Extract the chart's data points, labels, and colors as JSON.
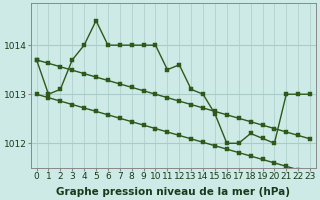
{
  "xlabel": "Graphe pression niveau de la mer (hPa)",
  "background_color": "#ceeae6",
  "grid_color": "#aaccc8",
  "line_color": "#2d5a1b",
  "marker_color": "#2d5a1b",
  "text_color": "#1a3a1a",
  "hours": [
    0,
    1,
    2,
    3,
    4,
    5,
    6,
    7,
    8,
    9,
    10,
    11,
    12,
    13,
    14,
    15,
    16,
    17,
    18,
    19,
    20,
    21,
    22,
    23
  ],
  "series_main": [
    1013.7,
    1013.0,
    1013.1,
    1013.7,
    1014.0,
    1014.5,
    1014.0,
    1014.0,
    1014.0,
    1014.0,
    1014.0,
    1013.5,
    1013.6,
    1013.1,
    1013.0,
    1012.6,
    1012.0,
    1012.0,
    1012.2,
    1012.1,
    1012.0,
    1013.0,
    1013.0,
    1013.0
  ],
  "series_trend1": [
    1013.7,
    1013.63,
    1013.56,
    1013.49,
    1013.42,
    1013.35,
    1013.28,
    1013.21,
    1013.14,
    1013.07,
    1013.0,
    1012.93,
    1012.86,
    1012.79,
    1012.72,
    1012.65,
    1012.58,
    1012.51,
    1012.44,
    1012.37,
    1012.3,
    1012.23,
    1012.16,
    1012.09
  ],
  "series_trend2": [
    1013.0,
    1012.93,
    1012.86,
    1012.79,
    1012.72,
    1012.65,
    1012.58,
    1012.51,
    1012.44,
    1012.37,
    1012.3,
    1012.23,
    1012.16,
    1012.09,
    1012.02,
    1011.95,
    1011.88,
    1011.81,
    1011.74,
    1011.67,
    1011.6,
    1011.53,
    1011.46,
    1011.39
  ],
  "ylim": [
    1011.5,
    1014.85
  ],
  "yticks": [
    1012,
    1013,
    1014
  ],
  "font_size": 6.5,
  "label_font_size": 7.5,
  "marker_size": 2.2,
  "line_width": 1.0
}
